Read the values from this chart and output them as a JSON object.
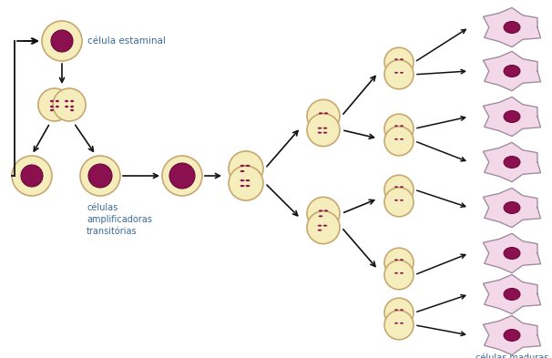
{
  "bg_color": "#ffffff",
  "cell_fill": "#f5eebc",
  "cell_stroke": "#c8a870",
  "nucleus_fill": "#8b1050",
  "nucleus_stroke": "#6a0838",
  "mature_fill": "#f2d8e8",
  "mature_stroke": "#9a8a9a",
  "arrow_color": "#111111",
  "text_color": "#3a6a9a",
  "label_stem": "célula estaminal",
  "label_transit": "células\namplificadoras\ntransitórias",
  "label_mature": "células maduras",
  "figsize": [
    6.06,
    3.93
  ],
  "dpi": 100
}
